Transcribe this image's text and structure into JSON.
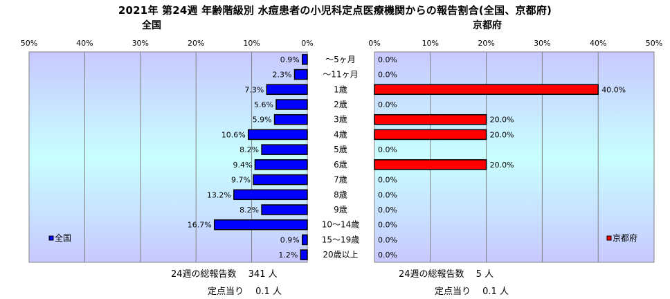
{
  "title": "2021年 第24週 年齢階級別 水痘患者の小児科定点医療機関からの報告割合(全国、京都府)",
  "categories": [
    "～5ヶ月",
    "～11ヶ月",
    "1歳",
    "2歳",
    "3歳",
    "4歳",
    "5歳",
    "6歳",
    "7歳",
    "8歳",
    "9歳",
    "10～14歳",
    "15～19歳",
    "20歳以上"
  ],
  "colors": {
    "national": "#0000ff",
    "kyoto": "#ff0000",
    "plot_top": "#c8c8ff",
    "plot_mid": "#c8ffff"
  },
  "chart_data": [
    {
      "type": "bar",
      "title": "全国",
      "orientation": "horizontal-reversed",
      "categories": [
        "～5ヶ月",
        "～11ヶ月",
        "1歳",
        "2歳",
        "3歳",
        "4歳",
        "5歳",
        "6歳",
        "7歳",
        "8歳",
        "9歳",
        "10～14歳",
        "15～19歳",
        "20歳以上"
      ],
      "series": [
        {
          "name": "全国",
          "values": [
            0.9,
            2.3,
            7.3,
            5.6,
            5.9,
            10.6,
            8.2,
            9.4,
            9.7,
            13.2,
            8.2,
            16.7,
            0.9,
            1.2
          ]
        }
      ],
      "value_labels": [
        "0.9%",
        "2.3%",
        "7.3%",
        "5.6%",
        "5.9%",
        "10.6%",
        "8.2%",
        "9.4%",
        "9.7%",
        "13.2%",
        "8.2%",
        "16.7%",
        "0.9%",
        "1.2%"
      ],
      "xlim": [
        0,
        50
      ],
      "xticks": [
        "50%",
        "40%",
        "30%",
        "20%",
        "10%",
        "0%"
      ],
      "grid": true,
      "legend": "bottom-left"
    },
    {
      "type": "bar",
      "title": "京都府",
      "orientation": "horizontal",
      "categories": [
        "～5ヶ月",
        "～11ヶ月",
        "1歳",
        "2歳",
        "3歳",
        "4歳",
        "5歳",
        "6歳",
        "7歳",
        "8歳",
        "9歳",
        "10～14歳",
        "15～19歳",
        "20歳以上"
      ],
      "series": [
        {
          "name": "京都府",
          "values": [
            0,
            0,
            40,
            0,
            20,
            20,
            0,
            20,
            0,
            0,
            0,
            0,
            0,
            0
          ]
        }
      ],
      "value_labels": [
        "0.0%",
        "0.0%",
        "40.0%",
        "0.0%",
        "20.0%",
        "20.0%",
        "0.0%",
        "20.0%",
        "0.0%",
        "0.0%",
        "0.0%",
        "0.0%",
        "0.0%",
        "0.0%"
      ],
      "xlim": [
        0,
        50
      ],
      "xticks": [
        "0%",
        "10%",
        "20%",
        "30%",
        "40%",
        "50%"
      ],
      "grid": true,
      "legend": "bottom-right"
    }
  ],
  "footer": {
    "national_total": "24週の総報告数　 341 人",
    "national_per": "定点当り　 0.1 人",
    "kyoto_total": "24週の総報告数　 5 人",
    "kyoto_per": "定点当り　 0.1 人"
  }
}
